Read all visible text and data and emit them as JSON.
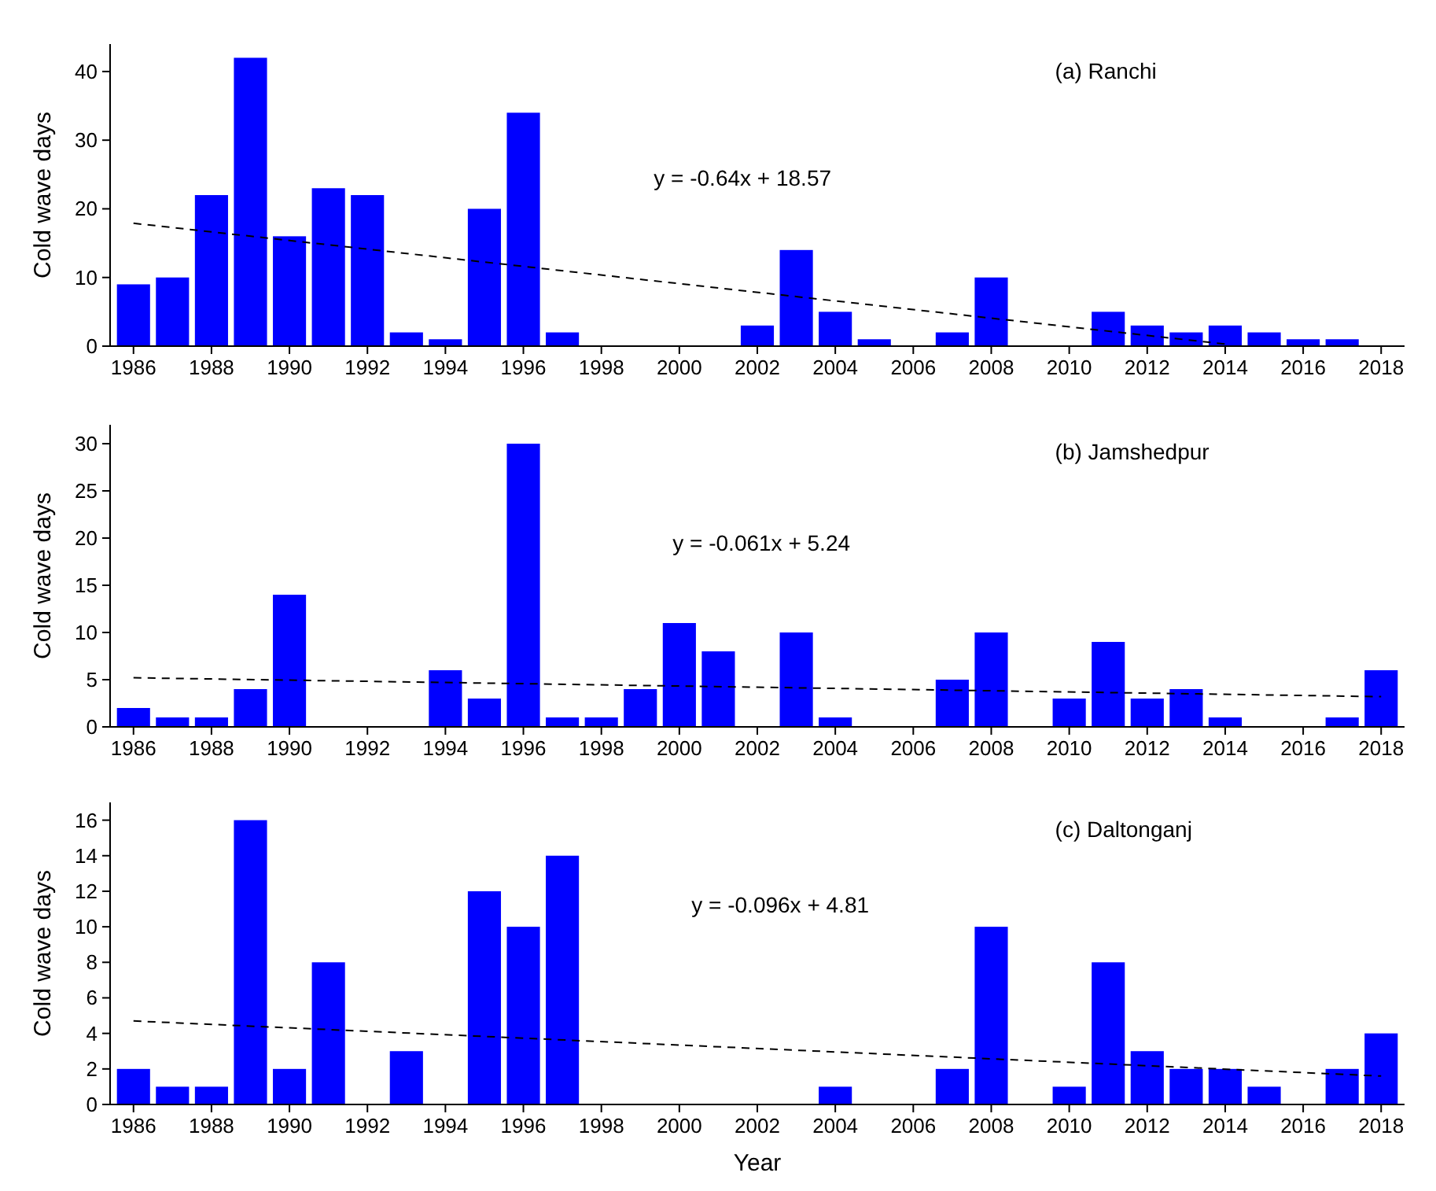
{
  "chart_data": [
    {
      "type": "bar",
      "title": "(a) Ranchi",
      "ylabel": "Cold wave days",
      "x": [
        1986,
        1987,
        1988,
        1989,
        1990,
        1991,
        1992,
        1993,
        1994,
        1995,
        1996,
        1997,
        1998,
        1999,
        2000,
        2001,
        2002,
        2003,
        2004,
        2005,
        2006,
        2007,
        2008,
        2009,
        2010,
        2011,
        2012,
        2013,
        2014,
        2015,
        2016,
        2017,
        2018
      ],
      "series": [
        {
          "color": "#0000ff",
          "values": [
            9,
            10,
            22,
            42,
            16,
            23,
            22,
            2,
            1,
            20,
            34,
            2,
            0,
            0,
            0,
            0,
            3,
            14,
            5,
            1,
            0,
            2,
            10,
            0,
            0,
            5,
            3,
            2,
            3,
            2,
            1,
            1,
            0
          ]
        },
        {
          "type": "line",
          "color": "#000000",
          "line_style": "dashed",
          "marker": "none",
          "x": [
            1986,
            2014
          ],
          "values": [
            17.9,
            0.3
          ]
        }
      ],
      "annotations": [
        "y = -0.64x + 18.57"
      ],
      "xlim": [
        1985.4,
        2018.6
      ],
      "xticks": [
        1986,
        1988,
        1990,
        1992,
        1994,
        1996,
        1998,
        2000,
        2002,
        2004,
        2006,
        2008,
        2010,
        2012,
        2014,
        2016,
        2018
      ],
      "ylim": [
        0,
        44
      ],
      "yticks": [
        0,
        10,
        20,
        30,
        40
      ],
      "grid": false
    },
    {
      "type": "bar",
      "title": "(b) Jamshedpur",
      "ylabel": "Cold wave days",
      "x": [
        1986,
        1987,
        1988,
        1989,
        1990,
        1991,
        1992,
        1993,
        1994,
        1995,
        1996,
        1997,
        1998,
        1999,
        2000,
        2001,
        2002,
        2003,
        2004,
        2005,
        2006,
        2007,
        2008,
        2009,
        2010,
        2011,
        2012,
        2013,
        2014,
        2015,
        2016,
        2017,
        2018
      ],
      "series": [
        {
          "color": "#0000ff",
          "values": [
            2,
            1,
            1,
            4,
            14,
            0,
            0,
            0,
            6,
            3,
            30,
            1,
            1,
            4,
            11,
            8,
            0,
            10,
            1,
            0,
            0,
            5,
            10,
            0,
            3,
            9,
            3,
            4,
            1,
            0,
            0,
            1,
            6
          ]
        },
        {
          "type": "line",
          "color": "#000000",
          "line_style": "dashed",
          "marker": "none",
          "x": [
            1986,
            2018
          ],
          "values": [
            5.2,
            3.2
          ]
        }
      ],
      "annotations": [
        "y = -0.061x + 5.24"
      ],
      "xlim": [
        1985.4,
        2018.6
      ],
      "xticks": [
        1986,
        1988,
        1990,
        1992,
        1994,
        1996,
        1998,
        2000,
        2002,
        2004,
        2006,
        2008,
        2010,
        2012,
        2014,
        2016,
        2018
      ],
      "ylim": [
        0,
        32
      ],
      "yticks": [
        0,
        5,
        10,
        15,
        20,
        25,
        30
      ],
      "grid": false
    },
    {
      "type": "bar",
      "title": "(c) Daltonganj",
      "ylabel": "Cold wave days",
      "xlabel": "Year",
      "x": [
        1986,
        1987,
        1988,
        1989,
        1990,
        1991,
        1992,
        1993,
        1994,
        1995,
        1996,
        1997,
        1998,
        1999,
        2000,
        2001,
        2002,
        2003,
        2004,
        2005,
        2006,
        2007,
        2008,
        2009,
        2010,
        2011,
        2012,
        2013,
        2014,
        2015,
        2016,
        2017,
        2018
      ],
      "series": [
        {
          "color": "#0000ff",
          "values": [
            2,
            1,
            1,
            16,
            2,
            8,
            0,
            3,
            0,
            12,
            10,
            14,
            0,
            0,
            0,
            0,
            0,
            0,
            1,
            0,
            0,
            2,
            10,
            0,
            1,
            8,
            3,
            2,
            2,
            1,
            0,
            2,
            4
          ]
        },
        {
          "type": "line",
          "color": "#000000",
          "line_style": "dashed",
          "marker": "none",
          "x": [
            1986,
            2018
          ],
          "values": [
            4.7,
            1.6
          ]
        }
      ],
      "annotations": [
        "y = -0.096x + 4.81"
      ],
      "xlim": [
        1985.4,
        2018.6
      ],
      "xticks": [
        1986,
        1988,
        1990,
        1992,
        1994,
        1996,
        1998,
        2000,
        2002,
        2004,
        2006,
        2008,
        2010,
        2012,
        2014,
        2016,
        2018
      ],
      "ylim": [
        0,
        17
      ],
      "yticks": [
        0,
        2,
        4,
        6,
        8,
        10,
        12,
        14,
        16
      ],
      "grid": false
    }
  ]
}
